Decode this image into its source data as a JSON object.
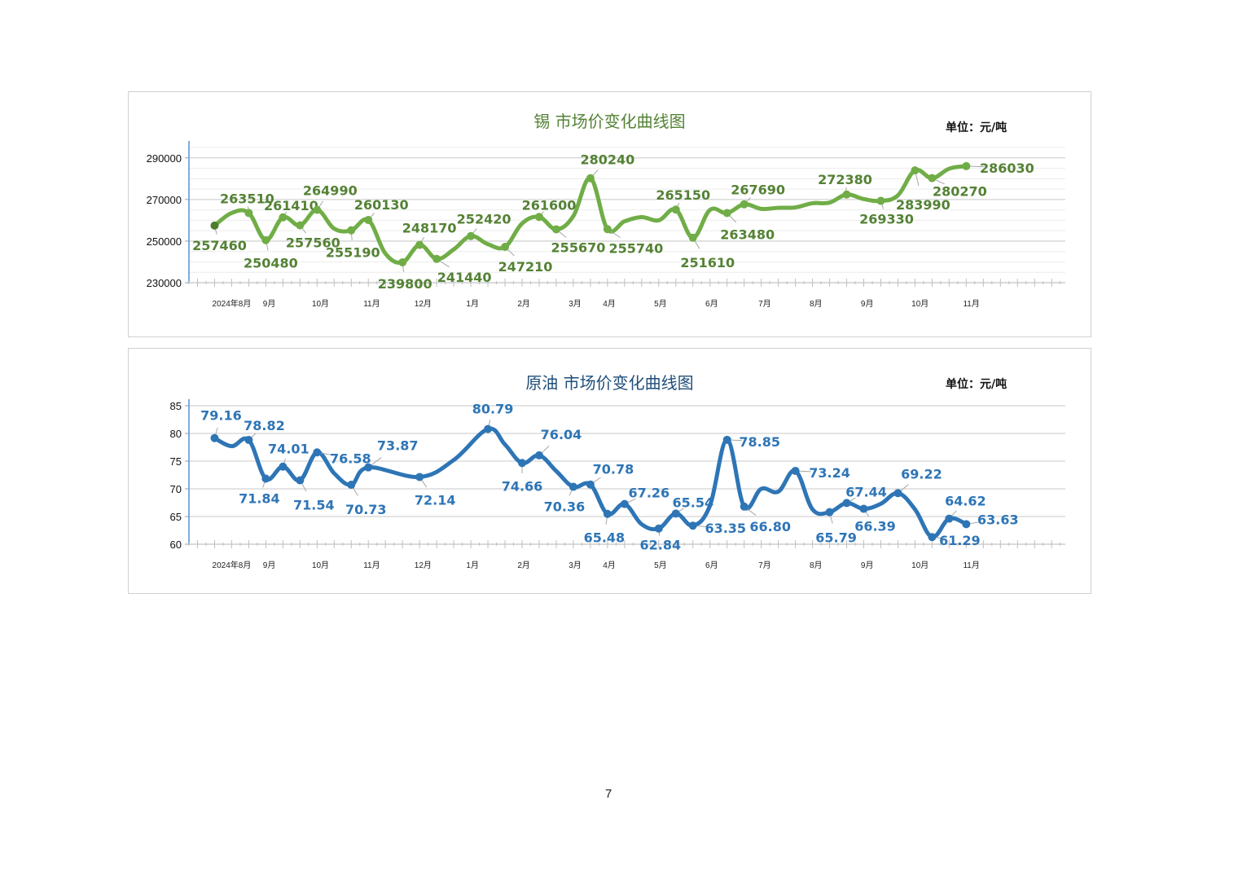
{
  "page_number": "7",
  "chart_data": [
    {
      "type": "line",
      "title": "锡  市场价变化曲线图",
      "unit": "单位：元/吨",
      "color": "#70ad47",
      "label_color": "#548235",
      "ylim": [
        230000,
        295000
      ],
      "yticks": [
        230000,
        250000,
        270000,
        290000
      ],
      "ytick_labels": [
        "230000",
        "250000",
        "270000",
        "290000"
      ],
      "xlim": [
        -1.5,
        49.8
      ],
      "xtick_labels": [
        {
          "t": 1.0,
          "label": "2024年8月"
        },
        {
          "t": 3.2,
          "label": "9月"
        },
        {
          "t": 6.2,
          "label": "10月"
        },
        {
          "t": 9.2,
          "label": "11月"
        },
        {
          "t": 12.2,
          "label": "12月"
        },
        {
          "t": 15.1,
          "label": "1月"
        },
        {
          "t": 18.1,
          "label": "2月"
        },
        {
          "t": 21.1,
          "label": "3月"
        },
        {
          "t": 23.1,
          "label": "4月"
        },
        {
          "t": 26.1,
          "label": "5月"
        },
        {
          "t": 29.1,
          "label": "6月"
        },
        {
          "t": 32.2,
          "label": "7月"
        },
        {
          "t": 35.2,
          "label": "8月"
        },
        {
          "t": 38.2,
          "label": "9月"
        },
        {
          "t": 41.3,
          "label": "10月"
        },
        {
          "t": 44.3,
          "label": "11月"
        }
      ],
      "points": [
        {
          "t": 0,
          "v": 257460,
          "label": "257460",
          "lx": 6,
          "ly": 24
        },
        {
          "t": 1,
          "v": 263510
        },
        {
          "t": 2,
          "v": 263510,
          "label": "263510",
          "lx": -2,
          "ly": -18
        },
        {
          "t": 3,
          "v": 250480,
          "label": "250480",
          "lx": 6,
          "ly": 28
        },
        {
          "t": 4,
          "v": 261410,
          "label": "261410",
          "lx": 10,
          "ly": -15
        },
        {
          "t": 5,
          "v": 257560,
          "label": "257560",
          "lx": 16,
          "ly": 21
        },
        {
          "t": 6,
          "v": 264990,
          "label": "264990",
          "lx": 16,
          "ly": -24
        },
        {
          "t": 7,
          "v": 256000
        },
        {
          "t": 8,
          "v": 255190,
          "label": "255190",
          "lx": 2,
          "ly": 27
        },
        {
          "t": 9,
          "v": 260130,
          "label": "260130",
          "lx": 16,
          "ly": -19
        },
        {
          "t": 10,
          "v": 244000
        },
        {
          "t": 11,
          "v": 239800,
          "label": "239800",
          "lx": 3,
          "ly": 26
        },
        {
          "t": 12,
          "v": 248170,
          "label": "248170",
          "lx": 12,
          "ly": -21
        },
        {
          "t": 13,
          "v": 241440,
          "label": "241440",
          "lx": 34,
          "ly": 22
        },
        {
          "t": 14,
          "v": 246000
        },
        {
          "t": 15,
          "v": 252420,
          "label": "252420",
          "lx": 16,
          "ly": -21
        },
        {
          "t": 16,
          "v": 248500
        },
        {
          "t": 17,
          "v": 247210,
          "label": "247210",
          "lx": 25,
          "ly": 24
        },
        {
          "t": 18,
          "v": 258500
        },
        {
          "t": 19,
          "v": 261600,
          "label": "261600",
          "lx": 12,
          "ly": -15
        },
        {
          "t": 20,
          "v": 255670,
          "label": "255670",
          "lx": 27,
          "ly": 22
        },
        {
          "t": 21,
          "v": 262000
        },
        {
          "t": 22,
          "v": 280240,
          "label": "280240",
          "lx": 21,
          "ly": -23
        },
        {
          "t": 23,
          "v": 255740,
          "label": "255740",
          "lx": 35,
          "ly": 23
        },
        {
          "t": 24,
          "v": 259500
        },
        {
          "t": 25,
          "v": 261500
        },
        {
          "t": 26,
          "v": 260000
        },
        {
          "t": 27,
          "v": 265150,
          "label": "265150",
          "lx": 9,
          "ly": -18
        },
        {
          "t": 28,
          "v": 251610,
          "label": "251610",
          "lx": 18,
          "ly": 30
        },
        {
          "t": 29,
          "v": 265000
        },
        {
          "t": 30,
          "v": 263480,
          "label": "263480",
          "lx": 25,
          "ly": 26
        },
        {
          "t": 31,
          "v": 267690,
          "label": "267690",
          "lx": 17,
          "ly": -18
        },
        {
          "t": 32,
          "v": 265500
        },
        {
          "t": 33,
          "v": 266000
        },
        {
          "t": 34,
          "v": 266200
        },
        {
          "t": 35,
          "v": 268200
        },
        {
          "t": 36,
          "v": 268500
        },
        {
          "t": 37,
          "v": 272380,
          "label": "272380",
          "lx": -2,
          "ly": -19
        },
        {
          "t": 38,
          "v": 270200
        },
        {
          "t": 39,
          "v": 269330,
          "label": "269330",
          "lx": 7,
          "ly": 22
        },
        {
          "t": 40,
          "v": 272000
        },
        {
          "t": 41,
          "v": 283990,
          "label": "283990",
          "lx": 10,
          "ly": 42
        },
        {
          "t": 42,
          "v": 280270,
          "label": "280270",
          "lx": 34,
          "ly": 16
        },
        {
          "t": 43,
          "v": 284800
        },
        {
          "t": 44,
          "v": 286030,
          "label": "286030",
          "lx": 50,
          "ly": 2
        }
      ]
    },
    {
      "type": "line",
      "title": "原油  市场价变化曲线图",
      "unit": "单位：元/吨",
      "color": "#2e75b6",
      "label_color": "#2e75b6",
      "ylim": [
        60,
        85
      ],
      "yticks": [
        60,
        65,
        70,
        75,
        80,
        85
      ],
      "ytick_labels": [
        "60",
        "65",
        "70",
        "75",
        "80",
        "85"
      ],
      "xlim": [
        -1.5,
        49.8
      ],
      "xtick_labels": [
        {
          "t": 1.0,
          "label": "2024年8月"
        },
        {
          "t": 3.2,
          "label": "9月"
        },
        {
          "t": 6.2,
          "label": "10月"
        },
        {
          "t": 9.2,
          "label": "11月"
        },
        {
          "t": 12.2,
          "label": "12月"
        },
        {
          "t": 15.1,
          "label": "1月"
        },
        {
          "t": 18.1,
          "label": "2月"
        },
        {
          "t": 21.1,
          "label": "3月"
        },
        {
          "t": 23.1,
          "label": "4月"
        },
        {
          "t": 26.1,
          "label": "5月"
        },
        {
          "t": 29.1,
          "label": "6月"
        },
        {
          "t": 32.2,
          "label": "7月"
        },
        {
          "t": 35.2,
          "label": "8月"
        },
        {
          "t": 38.2,
          "label": "9月"
        },
        {
          "t": 41.3,
          "label": "10月"
        },
        {
          "t": 44.3,
          "label": "11月"
        }
      ],
      "points": [
        {
          "t": 0,
          "v": 79.16,
          "label": "79.16",
          "lx": 8,
          "ly": -28
        },
        {
          "t": 1,
          "v": 77.7
        },
        {
          "t": 2,
          "v": 78.82,
          "label": "78.82",
          "lx": 19,
          "ly": -18
        },
        {
          "t": 3,
          "v": 71.84,
          "label": "71.84",
          "lx": -8,
          "ly": 24
        },
        {
          "t": 4,
          "v": 74.01,
          "label": "74.01",
          "lx": 7,
          "ly": -22
        },
        {
          "t": 5,
          "v": 71.54,
          "label": "71.54",
          "lx": 17,
          "ly": 30
        },
        {
          "t": 6,
          "v": 76.58,
          "label": "76.58",
          "lx": 41,
          "ly": 7
        },
        {
          "t": 7,
          "v": 72.8
        },
        {
          "t": 8,
          "v": 70.73,
          "label": "70.73",
          "lx": 18,
          "ly": 30
        },
        {
          "t": 9,
          "v": 73.87,
          "label": "73.87",
          "lx": 36,
          "ly": -27
        },
        {
          "t": 12,
          "v": 72.14,
          "label": "72.14",
          "lx": 19,
          "ly": 28
        },
        {
          "t": 14,
          "v": 75.2
        },
        {
          "t": 16,
          "v": 80.79,
          "label": "80.79",
          "lx": 6,
          "ly": -25
        },
        {
          "t": 17,
          "v": 78.0
        },
        {
          "t": 18,
          "v": 74.66,
          "label": "74.66",
          "lx": 0,
          "ly": 28
        },
        {
          "t": 19,
          "v": 76.04,
          "label": "76.04",
          "lx": 27,
          "ly": -26
        },
        {
          "t": 20,
          "v": 73.2
        },
        {
          "t": 21,
          "v": 70.36,
          "label": "70.36",
          "lx": -11,
          "ly": 24
        },
        {
          "t": 22,
          "v": 70.78,
          "label": "70.78",
          "lx": 28,
          "ly": -19
        },
        {
          "t": 23,
          "v": 65.48,
          "label": "65.48",
          "lx": -4,
          "ly": 29
        },
        {
          "t": 24,
          "v": 67.26,
          "label": "67.26",
          "lx": 30,
          "ly": -14
        },
        {
          "t": 25,
          "v": 63.6
        },
        {
          "t": 26,
          "v": 62.84,
          "label": "62.84",
          "lx": 2,
          "ly": 20
        },
        {
          "t": 27,
          "v": 65.54,
          "label": "65.54",
          "lx": 21,
          "ly": -14
        },
        {
          "t": 28,
          "v": 63.35,
          "label": "63.35",
          "lx": 40,
          "ly": 3
        },
        {
          "t": 29,
          "v": 67.0
        },
        {
          "t": 30,
          "v": 78.85,
          "label": "78.85",
          "lx": 40,
          "ly": 2
        },
        {
          "t": 31,
          "v": 66.8,
          "label": "66.80",
          "lx": 32,
          "ly": 24
        },
        {
          "t": 32,
          "v": 70.0
        },
        {
          "t": 33,
          "v": 69.5
        },
        {
          "t": 34,
          "v": 73.24,
          "label": "73.24",
          "lx": 42,
          "ly": 2
        },
        {
          "t": 35,
          "v": 66.3
        },
        {
          "t": 36,
          "v": 65.79,
          "label": "65.79",
          "lx": 8,
          "ly": 31
        },
        {
          "t": 37,
          "v": 67.44,
          "label": "67.44",
          "lx": 24,
          "ly": -14
        },
        {
          "t": 38,
          "v": 66.39,
          "label": "66.39",
          "lx": 14,
          "ly": 21
        },
        {
          "t": 39,
          "v": 67.3
        },
        {
          "t": 40,
          "v": 69.22,
          "label": "69.22",
          "lx": 29,
          "ly": -24
        },
        {
          "t": 41,
          "v": 66.3
        },
        {
          "t": 42,
          "v": 61.29,
          "label": "61.29",
          "lx": 34,
          "ly": 4
        },
        {
          "t": 43,
          "v": 64.62,
          "label": "64.62",
          "lx": 20,
          "ly": -22
        },
        {
          "t": 44,
          "v": 63.63,
          "label": "63.63",
          "lx": 39,
          "ly": -6
        }
      ]
    }
  ]
}
